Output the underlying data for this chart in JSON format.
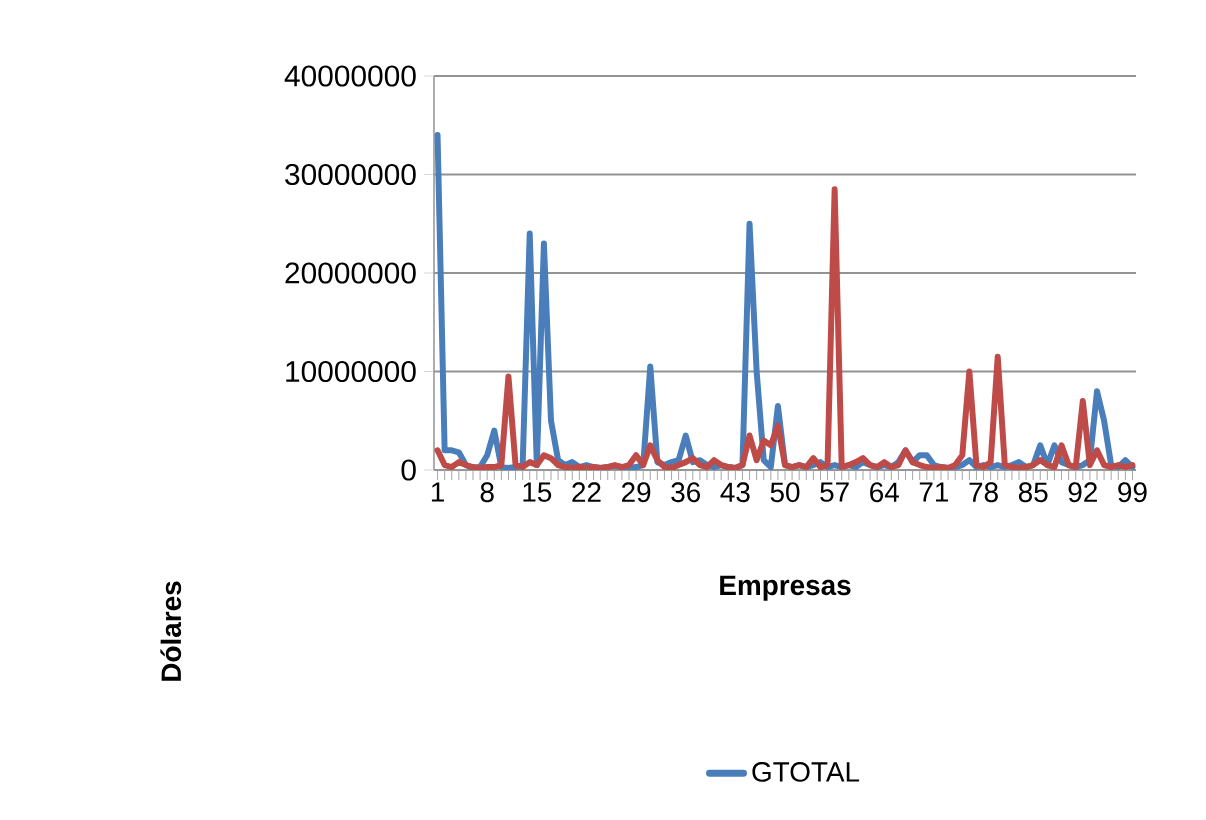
{
  "chart_data": {
    "type": "line",
    "xlabel": "Empresas",
    "ylabel": "Dólares",
    "categories": [
      "1",
      null,
      null,
      null,
      null,
      null,
      null,
      "8",
      null,
      null,
      null,
      null,
      null,
      null,
      "15",
      null,
      null,
      null,
      null,
      null,
      null,
      "22",
      null,
      null,
      null,
      null,
      null,
      null,
      "29",
      null,
      null,
      null,
      null,
      null,
      null,
      "36",
      null,
      null,
      null,
      null,
      null,
      null,
      "43",
      null,
      null,
      null,
      null,
      null,
      null,
      "50",
      null,
      null,
      null,
      null,
      null,
      null,
      "57",
      null,
      null,
      null,
      null,
      null,
      null,
      "64",
      null,
      null,
      null,
      null,
      null,
      null,
      "71",
      null,
      null,
      null,
      null,
      null,
      null,
      "78",
      null,
      null,
      null,
      null,
      null,
      null,
      "85",
      null,
      null,
      null,
      null,
      null,
      null,
      "92",
      null,
      null,
      null,
      null,
      null,
      null,
      "99"
    ],
    "series": [
      {
        "name": "GTOTAL",
        "color": "#4a7ebb",
        "values": [
          34000000,
          2000000,
          2000000,
          1800000,
          500000,
          200000,
          300000,
          1500000,
          4000000,
          300000,
          200000,
          300000,
          500000,
          24000000,
          500000,
          23000000,
          5000000,
          1000000,
          500000,
          800000,
          300000,
          500000,
          300000,
          200000,
          300000,
          400000,
          300000,
          200000,
          300000,
          500000,
          10500000,
          800000,
          500000,
          800000,
          1000000,
          3500000,
          800000,
          1000000,
          500000,
          300000,
          500000,
          300000,
          200000,
          500000,
          25000000,
          10000000,
          1000000,
          300000,
          6500000,
          500000,
          300000,
          500000,
          300000,
          500000,
          800000,
          300000,
          500000,
          300000,
          500000,
          300000,
          800000,
          500000,
          300000,
          500000,
          300000,
          800000,
          2000000,
          800000,
          1500000,
          1500000,
          500000,
          300000,
          200000,
          300000,
          500000,
          1000000,
          300000,
          500000,
          300000,
          500000,
          300000,
          500000,
          800000,
          300000,
          500000,
          2500000,
          500000,
          2500000,
          800000,
          500000,
          300000,
          500000,
          1000000,
          8000000,
          5000000,
          500000,
          300000,
          1000000,
          300000
        ]
      },
      {
        "color": "#be4b48",
        "values": [
          2000000,
          500000,
          300000,
          800000,
          500000,
          300000,
          200000,
          300000,
          300000,
          500000,
          9500000,
          500000,
          300000,
          800000,
          500000,
          1500000,
          1200000,
          500000,
          300000,
          200000,
          300000,
          200000,
          300000,
          200000,
          300000,
          500000,
          300000,
          500000,
          1500000,
          500000,
          2500000,
          1000000,
          300000,
          200000,
          500000,
          800000,
          1200000,
          500000,
          300000,
          1000000,
          500000,
          300000,
          200000,
          500000,
          3500000,
          1000000,
          3000000,
          2500000,
          4500000,
          500000,
          300000,
          500000,
          300000,
          1200000,
          300000,
          500000,
          28500000,
          300000,
          500000,
          800000,
          1200000,
          500000,
          300000,
          800000,
          300000,
          500000,
          2000000,
          800000,
          500000,
          300000,
          200000,
          300000,
          200000,
          500000,
          1500000,
          10000000,
          500000,
          300000,
          800000,
          11500000,
          500000,
          300000,
          200000,
          300000,
          500000,
          1000000,
          500000,
          300000,
          2500000,
          500000,
          300000,
          7000000,
          500000,
          2000000,
          500000,
          300000,
          500000,
          300000,
          500000
        ]
      }
    ],
    "ylim": [
      0,
      40000000
    ],
    "yticks": [
      0,
      10000000,
      20000000,
      30000000,
      40000000
    ],
    "grid": "y",
    "legend": "bottom",
    "marker": "none",
    "line_style": "solid"
  }
}
